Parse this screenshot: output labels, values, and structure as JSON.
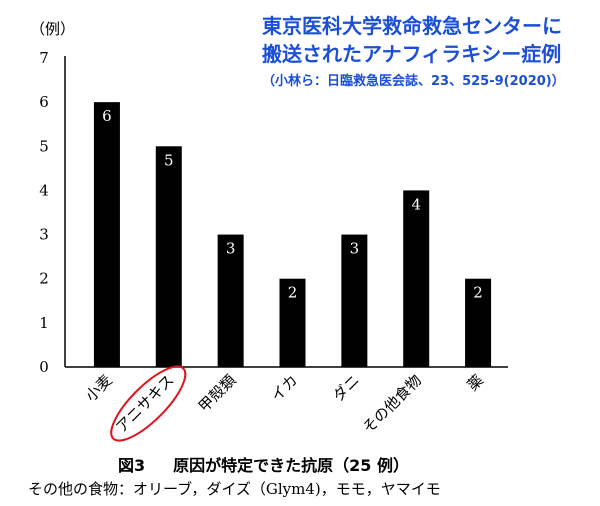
{
  "title": {
    "line1": "東京医科大学救命救急センターに",
    "line2": "搬送されたアナフィラキシー症例",
    "citation": "（小林ら：日臨救急医会誌、23、525-9(2020)）"
  },
  "chart_data": {
    "type": "bar",
    "categories": [
      "小麦",
      "アニサキス",
      "甲殻類",
      "イカ",
      "ダニ",
      "その他食物",
      "薬"
    ],
    "values": [
      6,
      5,
      3,
      2,
      3,
      4,
      2
    ],
    "ylabel": "（例）",
    "ylim": [
      0,
      7
    ],
    "yticks": [
      0,
      1,
      2,
      3,
      4,
      5,
      6,
      7
    ],
    "highlighted_category": "アニサキス",
    "bar_color": "#000000",
    "highlight_color": "#e0141e",
    "grid": false,
    "legend": "none"
  },
  "caption": {
    "figure_number": "図3",
    "text": "原因が特定できた抗原（25 例）"
  },
  "footnote": "その他の食物：オリーブ，ダイズ（Glym4)，モモ，ヤマイモ"
}
